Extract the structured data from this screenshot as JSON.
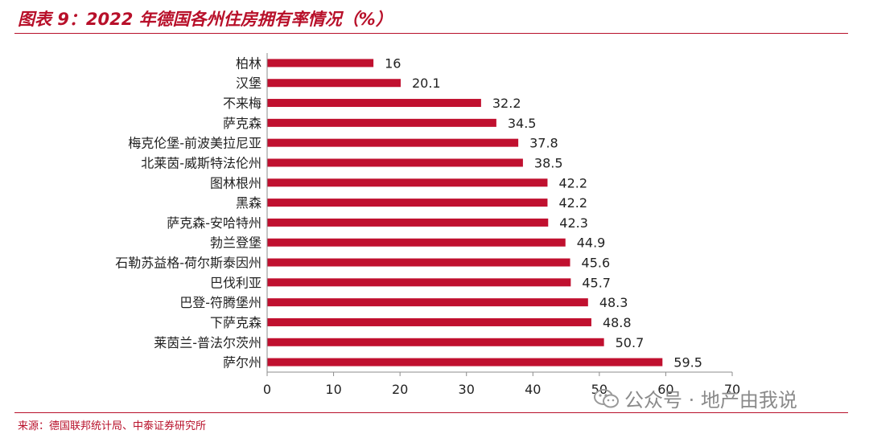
{
  "title": "图表 9：2022 年德国各州住房拥有率情况（%）",
  "source": "来源：德国联邦统计局、中泰证券研究所",
  "watermark": {
    "text": "公众号 · 地产由我说",
    "icon": "wechat-icon"
  },
  "colors": {
    "bar": "#c0102f",
    "accent": "#b8102a",
    "axis": "#8c8c8c",
    "text": "#222222"
  },
  "chart_data": {
    "type": "bar",
    "orientation": "horizontal",
    "categories": [
      "柏林",
      "汉堡",
      "不来梅",
      "萨克森",
      "梅克伦堡-前波美拉尼亚",
      "北莱茵-威斯特法伦州",
      "图林根州",
      "黑森",
      "萨克森-安哈特州",
      "勃兰登堡",
      "石勒苏益格-荷尔斯泰因州",
      "巴伐利亚",
      "巴登-符腾堡州",
      "下萨克森",
      "莱茵兰-普法尔茨州",
      "萨尔州"
    ],
    "values": [
      16,
      20.1,
      32.2,
      34.5,
      37.8,
      38.5,
      42.2,
      42.2,
      42.3,
      44.9,
      45.6,
      45.7,
      48.3,
      48.8,
      50.7,
      59.5
    ],
    "value_labels": [
      "16",
      "20.1",
      "32.2",
      "34.5",
      "37.8",
      "38.5",
      "42.2",
      "42.2",
      "42.3",
      "44.9",
      "45.6",
      "45.7",
      "48.3",
      "48.8",
      "50.7",
      "59.5"
    ],
    "xlim": [
      0,
      70
    ],
    "xticks": [
      0,
      10,
      20,
      30,
      40,
      50,
      60,
      70
    ],
    "grid": false,
    "legend": "none"
  }
}
